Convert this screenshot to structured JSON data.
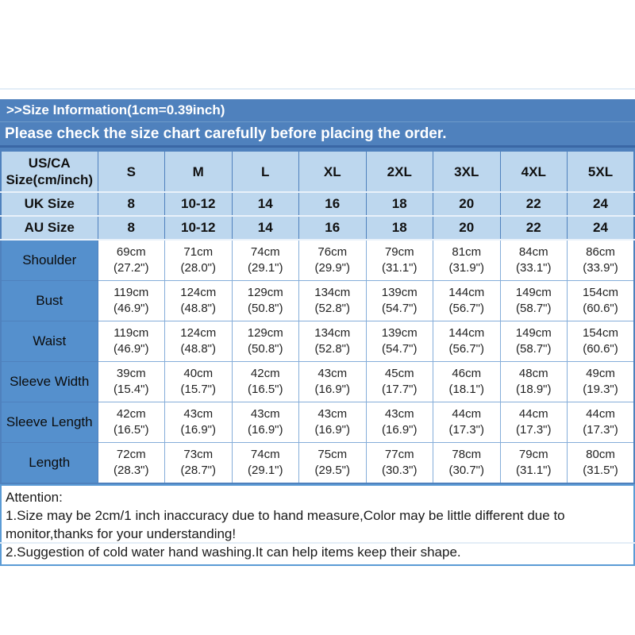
{
  "banner": {
    "title": ">>Size Information(1cm=0.39inch)",
    "subtitle": "Please check the size chart carefully before placing the order."
  },
  "table": {
    "corner": {
      "line1": "US/CA",
      "line2": "Size(cm/inch)"
    },
    "sizes": [
      "S",
      "M",
      "L",
      "XL",
      "2XL",
      "3XL",
      "4XL",
      "5XL"
    ],
    "uk": {
      "label": "UK Size",
      "values": [
        "8",
        "10-12",
        "14",
        "16",
        "18",
        "20",
        "22",
        "24"
      ]
    },
    "au": {
      "label": "AU Size",
      "values": [
        "8",
        "10-12",
        "14",
        "16",
        "18",
        "20",
        "22",
        "24"
      ]
    },
    "rows": [
      {
        "label": "Shoulder",
        "cm": [
          "69cm",
          "71cm",
          "74cm",
          "76cm",
          "79cm",
          "81cm",
          "84cm",
          "86cm"
        ],
        "inch": [
          "(27.2\")",
          "(28.0\")",
          "(29.1\")",
          "(29.9\")",
          "(31.1\")",
          "(31.9\")",
          "(33.1\")",
          "(33.9\")"
        ]
      },
      {
        "label": "Bust",
        "cm": [
          "119cm",
          "124cm",
          "129cm",
          "134cm",
          "139cm",
          "144cm",
          "149cm",
          "154cm"
        ],
        "inch": [
          "(46.9\")",
          "(48.8\")",
          "(50.8\")",
          "(52.8\")",
          "(54.7\")",
          "(56.7\")",
          "(58.7\")",
          "(60.6\")"
        ]
      },
      {
        "label": "Waist",
        "cm": [
          "119cm",
          "124cm",
          "129cm",
          "134cm",
          "139cm",
          "144cm",
          "149cm",
          "154cm"
        ],
        "inch": [
          "(46.9\")",
          "(48.8\")",
          "(50.8\")",
          "(52.8\")",
          "(54.7\")",
          "(56.7\")",
          "(58.7\")",
          "(60.6\")"
        ]
      },
      {
        "label": "Sleeve Width",
        "cm": [
          "39cm",
          "40cm",
          "42cm",
          "43cm",
          "45cm",
          "46cm",
          "48cm",
          "49cm"
        ],
        "inch": [
          "(15.4\")",
          "(15.7\")",
          "(16.5\")",
          "(16.9\")",
          "(17.7\")",
          "(18.1\")",
          "(18.9\")",
          "(19.3\")"
        ]
      },
      {
        "label": "Sleeve Length",
        "cm": [
          "42cm",
          "43cm",
          "43cm",
          "43cm",
          "43cm",
          "44cm",
          "44cm",
          "44cm"
        ],
        "inch": [
          "(16.5\")",
          "(16.9\")",
          "(16.9\")",
          "(16.9\")",
          "(16.9\")",
          "(17.3\")",
          "(17.3\")",
          "(17.3\")"
        ]
      },
      {
        "label": "Length",
        "cm": [
          "72cm",
          "73cm",
          "74cm",
          "75cm",
          "77cm",
          "78cm",
          "79cm",
          "80cm"
        ],
        "inch": [
          "(28.3\")",
          "(28.7\")",
          "(29.1\")",
          "(29.5\")",
          "(30.3\")",
          "(30.7\")",
          "(31.1\")",
          "(31.5\")"
        ]
      }
    ]
  },
  "attention": {
    "title": "Attention:",
    "note1": "1.Size may be 2cm/1 inch inaccuracy due to hand measure,Color may be little different due to monitor,thanks for your understanding!",
    "note2": "2.Suggestion of cold water hand washing.It can help items keep their shape."
  },
  "colors": {
    "banner_blue": "#4f81bd",
    "banner_divider_dark": "#3a67a5",
    "header_cell_light_blue": "#bdd7ee",
    "label_column_blue": "#5590cd",
    "data_border_blue": "#85add9",
    "attention_border_blue": "#5b9bd5"
  }
}
